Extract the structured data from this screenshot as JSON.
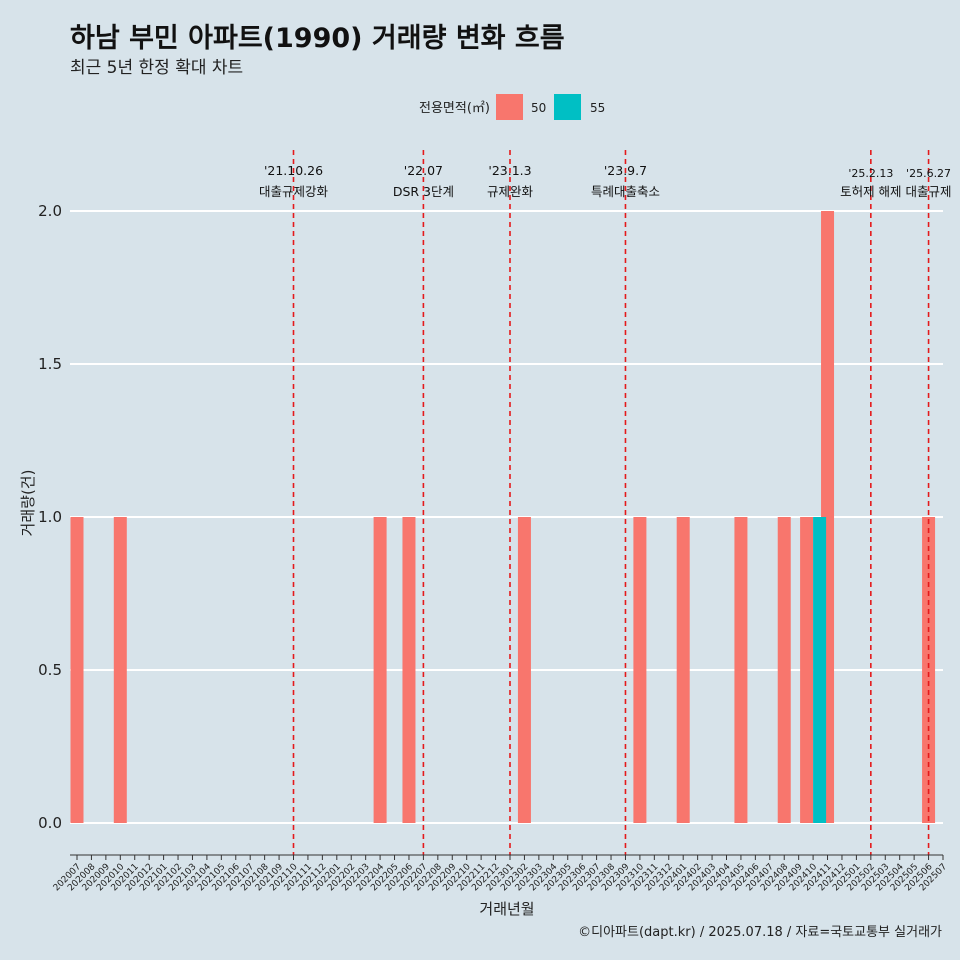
{
  "title": "하남 부민 아파트(1990) 거래량 변화 흐름",
  "subtitle": "최근 5년 한정 확대 차트",
  "caption": "©디아파트(dapt.kr) / 2025.07.18 / 자료=국토교통부 실거래가",
  "chart_data": {
    "type": "bar",
    "xlabel": "거래년월",
    "ylabel": "거래량(건)",
    "ylim": [
      0,
      2.2
    ],
    "yticks": [
      "0.0",
      "0.5",
      "1.0",
      "1.5",
      "2.0"
    ],
    "ytick_values": [
      0,
      0.5,
      1.0,
      1.5,
      2.0
    ],
    "legend": {
      "title": "전용면적(㎡)",
      "position": "top",
      "items": [
        {
          "label": "50",
          "color": "#F8766D"
        },
        {
          "label": "55",
          "color": "#00BFC4"
        }
      ]
    },
    "categories": [
      "202007",
      "202008",
      "202009",
      "202010",
      "202011",
      "202012",
      "202101",
      "202102",
      "202103",
      "202104",
      "202105",
      "202106",
      "202107",
      "202108",
      "202109",
      "202110",
      "202111",
      "202112",
      "202201",
      "202202",
      "202203",
      "202204",
      "202205",
      "202206",
      "202207",
      "202208",
      "202209",
      "202210",
      "202211",
      "202212",
      "202301",
      "202302",
      "202303",
      "202304",
      "202305",
      "202306",
      "202307",
      "202308",
      "202309",
      "202310",
      "202311",
      "202312",
      "202401",
      "202402",
      "202403",
      "202404",
      "202405",
      "202406",
      "202407",
      "202408",
      "202409",
      "202410",
      "202411",
      "202412",
      "202501",
      "202502",
      "202503",
      "202504",
      "202505",
      "202506",
      "202507"
    ],
    "series": [
      {
        "name": "50",
        "color": "#F8766D",
        "values": [
          {
            "month": "202007",
            "value": 1
          },
          {
            "month": "202010",
            "value": 1
          },
          {
            "month": "202204",
            "value": 1
          },
          {
            "month": "202206",
            "value": 1
          },
          {
            "month": "202302",
            "value": 1
          },
          {
            "month": "202310",
            "value": 1
          },
          {
            "month": "202401",
            "value": 1
          },
          {
            "month": "202405",
            "value": 1
          },
          {
            "month": "202408",
            "value": 1
          },
          {
            "month": "202410",
            "value": 1
          },
          {
            "month": "202411",
            "value": 2
          },
          {
            "month": "202506",
            "value": 1
          }
        ]
      },
      {
        "name": "55",
        "color": "#00BFC4",
        "values": [
          {
            "month": "202410",
            "value": 1
          }
        ]
      }
    ],
    "annotations": [
      {
        "month": "202110",
        "date": "'21.10.26",
        "label": "대출규제강화"
      },
      {
        "month": "202207",
        "date": "'22.07",
        "label": "DSR 3단계"
      },
      {
        "month": "202301",
        "date": "'23.1.3",
        "label": "규제완화"
      },
      {
        "month": "202309",
        "date": "'23.9.7",
        "label": "특례대출축소"
      },
      {
        "month": "202502",
        "date": "'25.2.13",
        "label": "토허제 해제"
      },
      {
        "month": "202506",
        "date": "'25.6.27",
        "label": "대출규제"
      }
    ]
  }
}
